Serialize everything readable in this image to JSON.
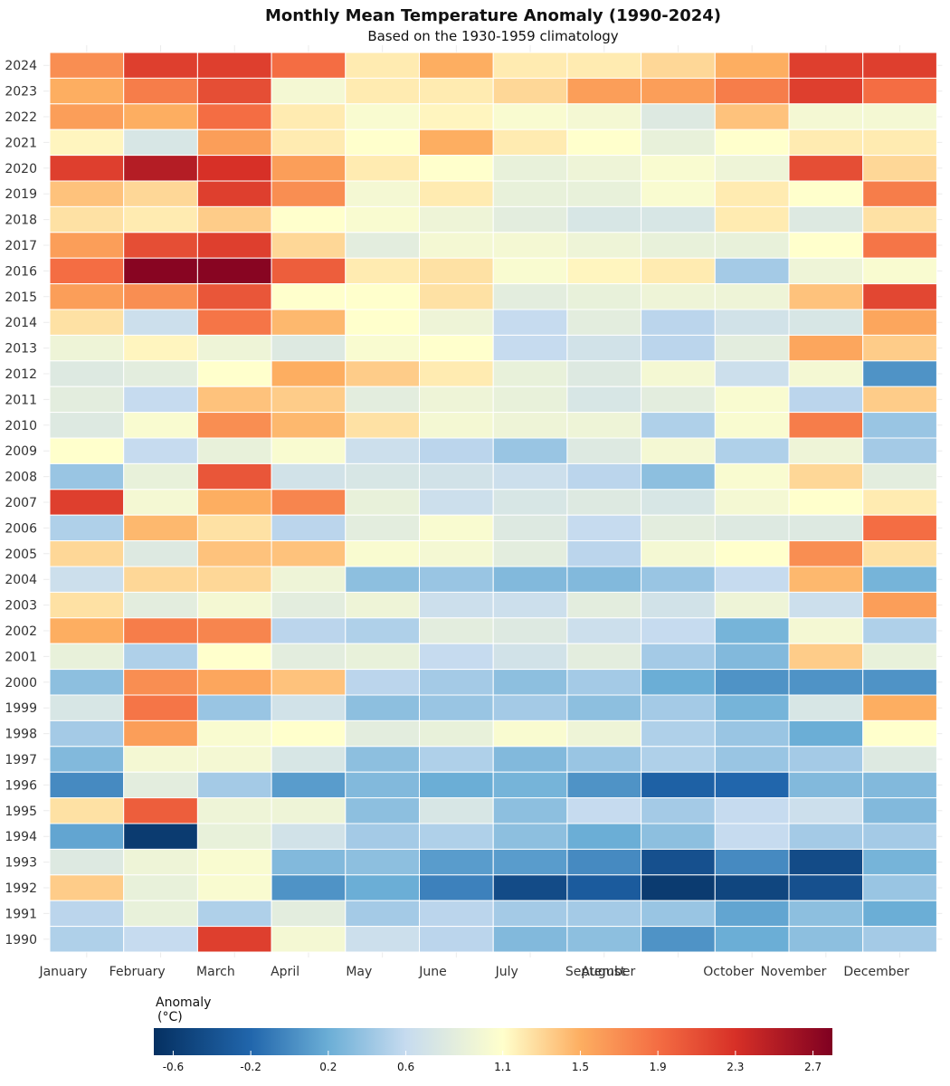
{
  "chart_data": {
    "type": "heatmap",
    "title": "Monthly Mean Temperature Anomaly (1990-2024)",
    "subtitle": "Based on the 1930-1959 climatology",
    "xlabel": "",
    "ylabel": "",
    "months": [
      "January",
      "February",
      "March",
      "April",
      "May",
      "June",
      "July",
      "August",
      "September",
      "October",
      "November",
      "December"
    ],
    "years": [
      2024,
      2023,
      2022,
      2021,
      2020,
      2019,
      2018,
      2017,
      2016,
      2015,
      2014,
      2013,
      2012,
      2011,
      2010,
      2009,
      2008,
      2007,
      2006,
      2005,
      2004,
      2003,
      2002,
      2001,
      2000,
      1999,
      1998,
      1997,
      1996,
      1995,
      1994,
      1993,
      1992,
      1991,
      1990
    ],
    "values": [
      [
        1.7,
        2.2,
        2.2,
        1.9,
        1.2,
        1.5,
        1.2,
        1.2,
        1.3,
        1.5,
        2.2,
        2.2
      ],
      [
        1.5,
        1.8,
        2.1,
        1.0,
        1.2,
        1.2,
        1.3,
        1.6,
        1.6,
        1.8,
        2.2,
        1.9
      ],
      [
        1.6,
        1.5,
        1.9,
        1.2,
        1.05,
        1.15,
        1.05,
        1.0,
        0.8,
        1.4,
        1.0,
        1.0
      ],
      [
        1.15,
        0.75,
        1.6,
        1.2,
        1.1,
        1.5,
        1.2,
        1.1,
        0.9,
        1.1,
        1.2,
        1.2
      ],
      [
        2.2,
        2.5,
        2.3,
        1.6,
        1.2,
        1.1,
        0.9,
        0.95,
        1.05,
        0.95,
        2.1,
        1.3
      ],
      [
        1.4,
        1.3,
        2.2,
        1.7,
        1.0,
        1.2,
        0.9,
        0.9,
        1.05,
        1.2,
        1.1,
        1.8
      ],
      [
        1.25,
        1.2,
        1.35,
        1.1,
        1.05,
        0.95,
        0.85,
        0.75,
        0.75,
        1.2,
        0.8,
        1.25
      ],
      [
        1.6,
        2.1,
        2.2,
        1.3,
        0.85,
        1.0,
        1.0,
        0.95,
        0.9,
        0.9,
        1.1,
        1.85
      ],
      [
        1.9,
        2.75,
        2.75,
        2.0,
        1.2,
        1.25,
        1.05,
        1.15,
        1.2,
        0.45,
        0.95,
        1.05
      ],
      [
        1.6,
        1.7,
        2.05,
        1.1,
        1.1,
        1.25,
        0.85,
        0.9,
        0.95,
        0.95,
        1.4,
        2.15
      ],
      [
        1.25,
        0.65,
        1.85,
        1.45,
        1.1,
        0.95,
        0.6,
        0.85,
        0.55,
        0.7,
        0.75,
        1.55
      ],
      [
        0.95,
        1.15,
        0.95,
        0.8,
        1.05,
        1.1,
        0.6,
        0.7,
        0.55,
        0.85,
        1.55,
        1.35
      ],
      [
        0.8,
        0.85,
        1.1,
        1.5,
        1.35,
        1.2,
        0.9,
        0.8,
        1.0,
        0.65,
        1.0,
        0.05
      ],
      [
        0.85,
        0.6,
        1.4,
        1.35,
        0.85,
        0.95,
        0.9,
        0.75,
        0.85,
        1.05,
        0.55,
        1.35
      ],
      [
        0.8,
        1.05,
        1.7,
        1.45,
        1.25,
        1.0,
        0.95,
        0.95,
        0.5,
        1.05,
        1.8,
        0.4
      ],
      [
        1.1,
        0.6,
        0.9,
        1.05,
        0.65,
        0.55,
        0.4,
        0.8,
        1.0,
        0.5,
        0.95,
        0.45
      ],
      [
        0.4,
        0.9,
        2.05,
        0.7,
        0.75,
        0.7,
        0.65,
        0.55,
        0.35,
        1.05,
        1.3,
        0.85
      ],
      [
        2.2,
        1.0,
        1.5,
        1.75,
        0.9,
        0.65,
        0.75,
        0.8,
        0.75,
        1.0,
        1.1,
        1.2
      ],
      [
        0.5,
        1.45,
        1.25,
        0.55,
        0.85,
        1.05,
        0.8,
        0.6,
        0.85,
        0.8,
        0.8,
        1.9
      ],
      [
        1.3,
        0.8,
        1.4,
        1.4,
        1.05,
        1.0,
        0.85,
        0.55,
        1.0,
        1.1,
        1.7,
        1.25
      ],
      [
        0.65,
        1.3,
        1.3,
        0.95,
        0.35,
        0.4,
        0.3,
        0.3,
        0.4,
        0.6,
        1.45,
        0.25
      ],
      [
        1.25,
        0.85,
        1.0,
        0.85,
        0.95,
        0.65,
        0.65,
        0.85,
        0.7,
        0.95,
        0.65,
        1.6
      ],
      [
        1.5,
        1.8,
        1.75,
        0.55,
        0.5,
        0.85,
        0.8,
        0.65,
        0.6,
        0.25,
        1.0,
        0.5
      ],
      [
        0.9,
        0.5,
        1.1,
        0.85,
        0.9,
        0.6,
        0.7,
        0.85,
        0.45,
        0.3,
        1.35,
        0.9
      ],
      [
        0.35,
        1.7,
        1.55,
        1.4,
        0.55,
        0.45,
        0.35,
        0.45,
        0.2,
        0.05,
        0.05,
        0.05
      ],
      [
        0.75,
        1.85,
        0.4,
        0.7,
        0.35,
        0.4,
        0.45,
        0.35,
        0.45,
        0.25,
        0.75,
        1.5
      ],
      [
        0.45,
        1.6,
        1.05,
        1.1,
        0.85,
        0.9,
        1.05,
        0.95,
        0.5,
        0.4,
        0.2,
        1.1
      ],
      [
        0.3,
        1.0,
        1.0,
        0.75,
        0.35,
        0.5,
        0.3,
        0.4,
        0.5,
        0.4,
        0.45,
        0.8
      ],
      [
        0.0,
        0.85,
        0.45,
        0.1,
        0.3,
        0.2,
        0.25,
        0.05,
        -0.25,
        -0.2,
        0.3,
        0.3
      ],
      [
        1.25,
        2.0,
        0.95,
        0.95,
        0.35,
        0.75,
        0.35,
        0.6,
        0.45,
        0.6,
        0.65,
        0.3
      ],
      [
        0.15,
        -0.6,
        0.9,
        0.7,
        0.45,
        0.5,
        0.35,
        0.2,
        0.35,
        0.6,
        0.45,
        0.45
      ],
      [
        0.8,
        0.95,
        1.05,
        0.3,
        0.35,
        0.1,
        0.1,
        0.0,
        -0.4,
        0.0,
        -0.45,
        0.25
      ],
      [
        1.35,
        0.9,
        1.05,
        0.05,
        0.2,
        -0.05,
        -0.45,
        -0.3,
        -0.6,
        -0.5,
        -0.4,
        0.4
      ],
      [
        0.55,
        0.9,
        0.5,
        0.85,
        0.45,
        0.55,
        0.45,
        0.45,
        0.4,
        0.15,
        0.35,
        0.2
      ],
      [
        0.5,
        0.6,
        2.2,
        1.0,
        0.65,
        0.55,
        0.3,
        0.35,
        0.05,
        0.2,
        0.35,
        0.45
      ]
    ],
    "legend": {
      "title_line1": "Anomaly",
      "title_line2": "(°C)",
      "min": -0.7,
      "max": 2.8,
      "ticks": [
        -0.6,
        -0.2,
        0.2,
        0.6,
        1.1,
        1.5,
        1.9,
        2.3,
        2.7
      ],
      "tick_labels": [
        "-0.6",
        "-0.2",
        "0.2",
        "0.6",
        "1.1",
        "1.5",
        "1.9",
        "2.3",
        "2.7"
      ],
      "placement": "bottom",
      "colors": [
        {
          "v": -0.7,
          "c": "#053061"
        },
        {
          "v": -0.2,
          "c": "#2166ac"
        },
        {
          "v": 0.2,
          "c": "#6baed6"
        },
        {
          "v": 0.6,
          "c": "#c6dbef"
        },
        {
          "v": 1.1,
          "c": "#ffffcc"
        },
        {
          "v": 1.5,
          "c": "#fdae61"
        },
        {
          "v": 1.9,
          "c": "#f46d43"
        },
        {
          "v": 2.3,
          "c": "#d73027"
        },
        {
          "v": 2.8,
          "c": "#7f0021"
        }
      ]
    },
    "grid": true
  }
}
